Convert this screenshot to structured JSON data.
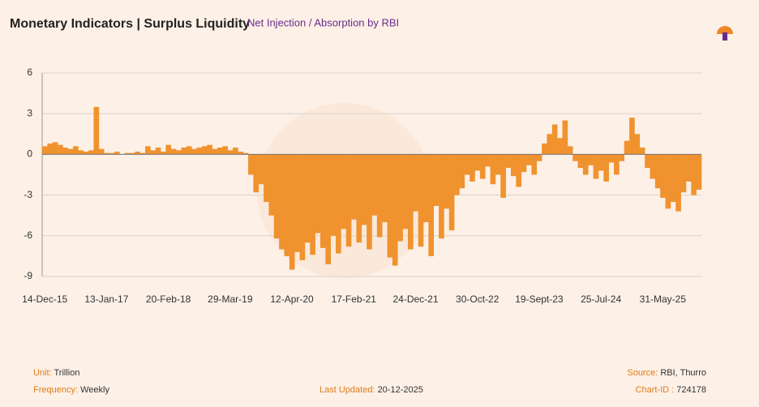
{
  "chart_data": {
    "type": "bar",
    "title": "Monetary Indicators | Surplus Liquidity",
    "subtitle": "Net Injection / Absorption by RBI",
    "color": "#f0922e",
    "ylim": [
      -9,
      6
    ],
    "yticks": [
      -9,
      -6,
      -3,
      0,
      3,
      6
    ],
    "grid": true,
    "categories": [
      "14-Dec-15",
      null,
      null,
      null,
      null,
      null,
      null,
      null,
      null,
      null,
      null,
      null,
      "13-Jan-17",
      null,
      null,
      null,
      null,
      null,
      null,
      null,
      null,
      null,
      null,
      null,
      "20-Feb-18",
      null,
      null,
      null,
      null,
      null,
      null,
      null,
      null,
      null,
      null,
      null,
      "29-Mar-19",
      null,
      null,
      null,
      null,
      null,
      null,
      null,
      null,
      null,
      null,
      null,
      "12-Apr-20",
      null,
      null,
      null,
      null,
      null,
      null,
      null,
      null,
      null,
      null,
      null,
      "17-Feb-21",
      null,
      null,
      null,
      null,
      null,
      null,
      null,
      null,
      null,
      null,
      null,
      "24-Dec-21",
      null,
      null,
      null,
      null,
      null,
      null,
      null,
      null,
      null,
      null,
      null,
      "30-Oct-22",
      null,
      null,
      null,
      null,
      null,
      null,
      null,
      null,
      null,
      null,
      null,
      "19-Sept-23",
      null,
      null,
      null,
      null,
      null,
      null,
      null,
      null,
      null,
      null,
      null,
      "25-Jul-24",
      null,
      null,
      null,
      null,
      null,
      null,
      null,
      null,
      null,
      null,
      null,
      "31-May-25",
      null,
      null,
      null,
      null,
      null,
      null,
      null
    ],
    "values": [
      0.6,
      0.8,
      0.9,
      0.7,
      0.5,
      0.4,
      0.6,
      0.3,
      0.2,
      0.3,
      3.5,
      0.4,
      0.1,
      0.1,
      0.2,
      0.0,
      0.1,
      0.1,
      0.2,
      0.1,
      0.6,
      0.3,
      0.5,
      0.2,
      0.7,
      0.4,
      0.3,
      0.5,
      0.6,
      0.4,
      0.5,
      0.6,
      0.7,
      0.4,
      0.5,
      0.6,
      0.3,
      0.5,
      0.2,
      0.1,
      -1.5,
      -2.8,
      -2.2,
      -3.5,
      -4.5,
      -6.2,
      -7.0,
      -7.5,
      -8.5,
      -7.2,
      -7.8,
      -6.5,
      -7.4,
      -5.8,
      -6.9,
      -8.1,
      -6.0,
      -7.3,
      -5.5,
      -6.8,
      -4.8,
      -6.5,
      -5.2,
      -7.0,
      -4.5,
      -6.1,
      -5.0,
      -7.6,
      -8.2,
      -6.4,
      -5.5,
      -7.0,
      -4.2,
      -6.8,
      -5.0,
      -7.5,
      -3.8,
      -6.2,
      -4.0,
      -5.6,
      -3.0,
      -2.5,
      -1.5,
      -2.0,
      -1.2,
      -1.8,
      -0.9,
      -2.2,
      -1.5,
      -3.2,
      -1.0,
      -1.6,
      -2.4,
      -1.3,
      -0.8,
      -1.5,
      -0.5,
      0.8,
      1.5,
      2.2,
      1.2,
      2.5,
      0.6,
      -0.5,
      -1.0,
      -1.5,
      -0.8,
      -1.8,
      -1.2,
      -2.0,
      -0.6,
      -1.5,
      -0.5,
      1.0,
      2.7,
      1.5,
      0.5,
      -1.0,
      -1.8,
      -2.5,
      -3.2,
      -4.0,
      -3.5,
      -4.2,
      -2.8,
      -2.0,
      -3.0,
      -2.6
    ]
  },
  "footer": {
    "unit_label": "Unit:",
    "unit": "Trillion",
    "frequency_label": "Frequency:",
    "frequency": "Weekly",
    "updated_label": "Last Updated:",
    "updated": "20-12-2025",
    "source_label": "Source:",
    "source": "RBI, Thurro",
    "chart_id_label": "Chart-ID :",
    "chart_id": "724178"
  }
}
